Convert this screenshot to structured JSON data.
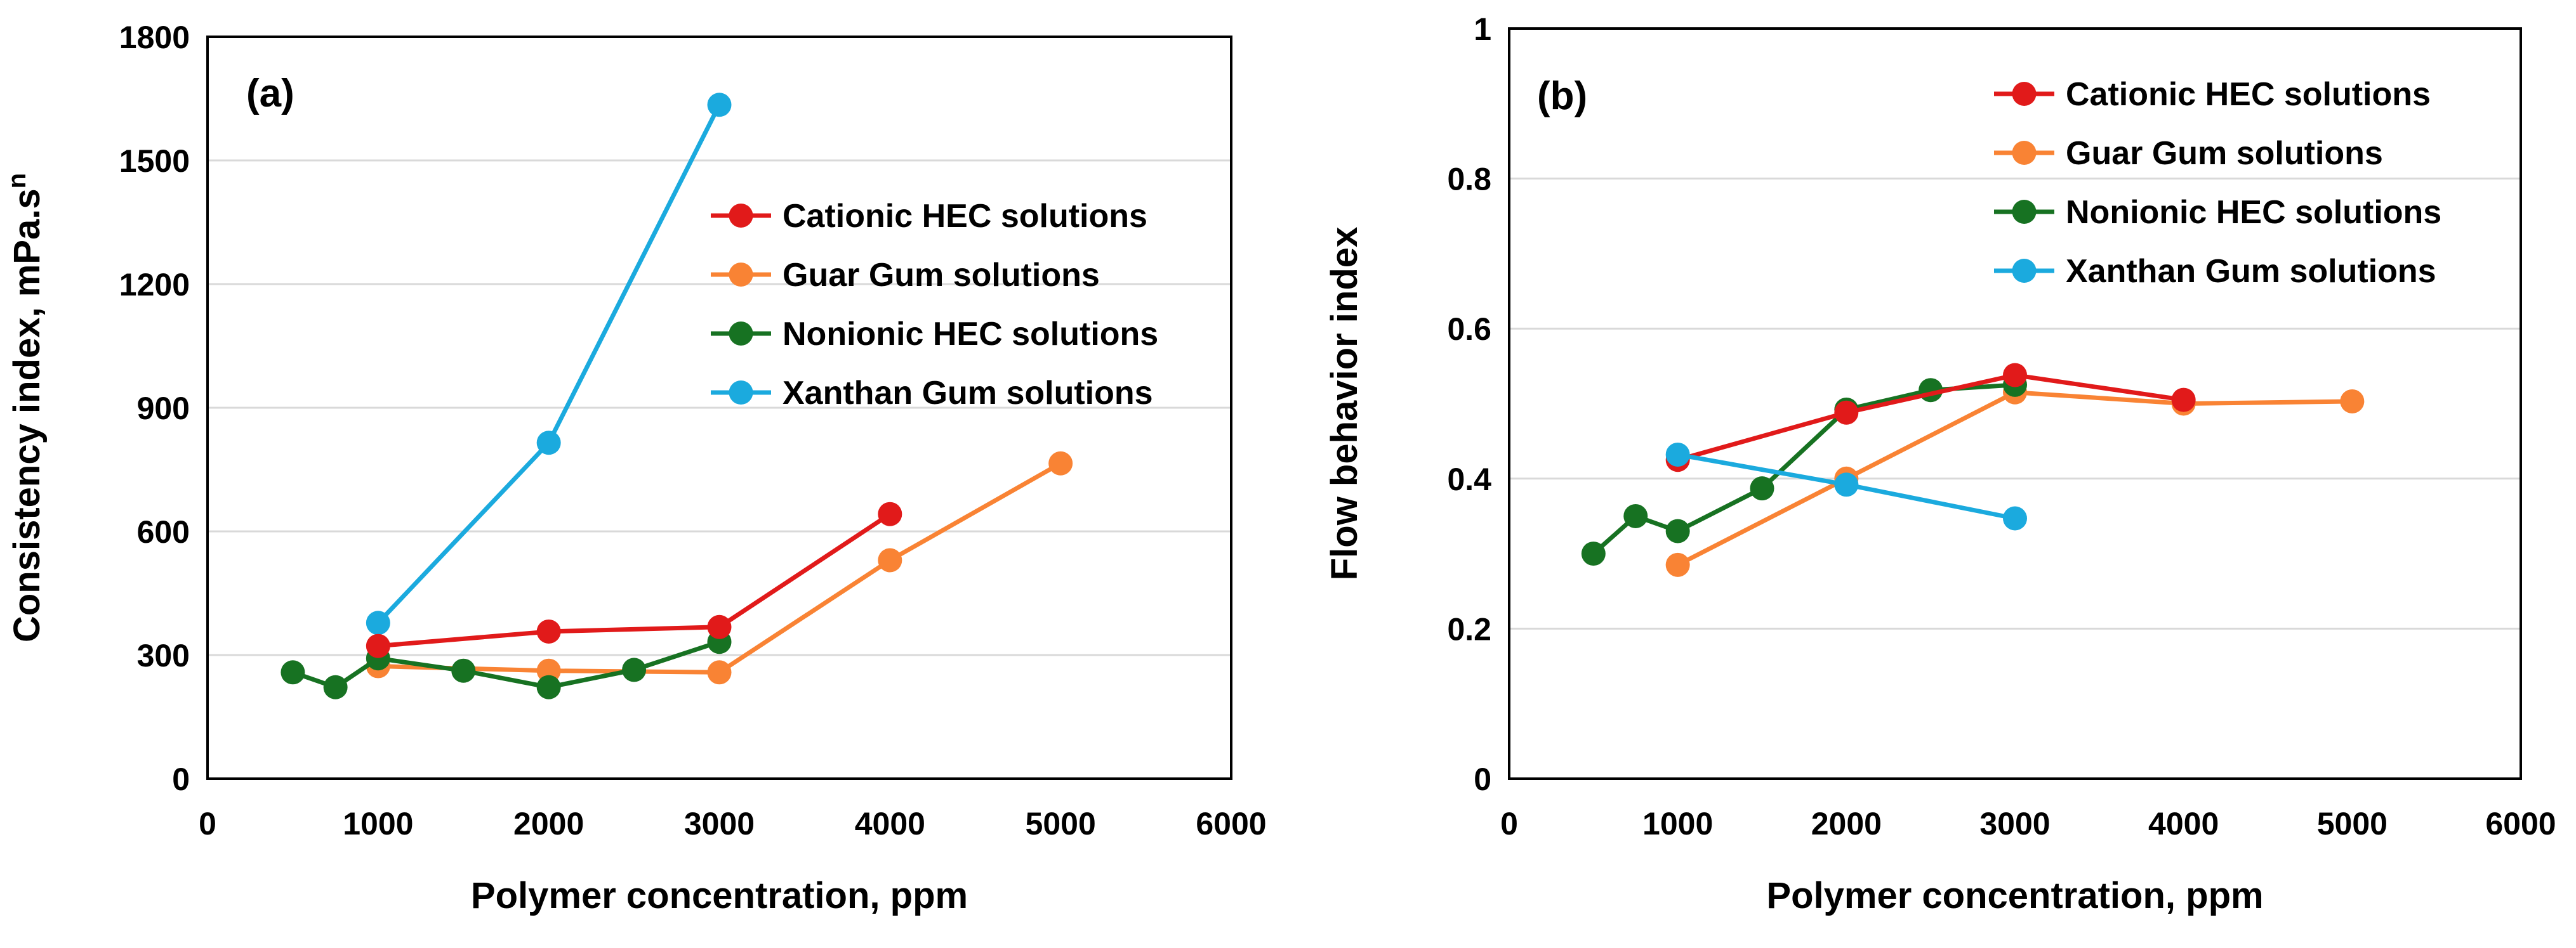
{
  "chart_data": [
    {
      "type": "line",
      "panel_label": "(a)",
      "xlabel": "Polymer concentration, ppm",
      "ylabel": "Consistency index, mPa.s",
      "ylabel_sup": "n",
      "xlim": [
        0,
        6000
      ],
      "ylim": [
        0,
        1800
      ],
      "xticks": [
        0,
        1000,
        2000,
        3000,
        4000,
        5000,
        6000
      ],
      "yticks": [
        0,
        300,
        600,
        900,
        1200,
        1500,
        1800
      ],
      "xtick_labels": [
        "0",
        "1000",
        "2000",
        "3000",
        "4000",
        "5000",
        "6000"
      ],
      "ytick_labels": [
        "0",
        "300",
        "600",
        "900",
        "1200",
        "1500",
        "1800"
      ],
      "grid": true,
      "legend_position": "center-right",
      "series": [
        {
          "name": "Xanthan Gum solutions",
          "color": "#1BAADE",
          "x": [
            1000,
            2000,
            3000
          ],
          "y": [
            378,
            815,
            1635
          ]
        },
        {
          "name": "Guar Gum solutions",
          "color": "#F98334",
          "x": [
            1000,
            2000,
            3000,
            4000,
            5000
          ],
          "y": [
            273,
            262,
            258,
            530,
            765
          ]
        },
        {
          "name": "Nonionic HEC solutions",
          "color": "#177222",
          "x": [
            500,
            750,
            1000,
            1500,
            2000,
            2500,
            3000
          ],
          "y": [
            258,
            222,
            292,
            262,
            222,
            264,
            332
          ]
        },
        {
          "name": "Cationic HEC solutions",
          "color": "#E11A1A",
          "x": [
            1000,
            2000,
            3000,
            4000
          ],
          "y": [
            322,
            357,
            368,
            642
          ]
        }
      ],
      "legend_order": [
        "Cationic HEC solutions",
        "Guar Gum solutions",
        "Nonionic HEC solutions",
        "Xanthan Gum solutions"
      ]
    },
    {
      "type": "line",
      "panel_label": "(b)",
      "xlabel": "Polymer concentration, ppm",
      "ylabel": "Flow behavior index",
      "xlim": [
        0,
        6000
      ],
      "ylim": [
        0,
        1
      ],
      "xticks": [
        0,
        1000,
        2000,
        3000,
        4000,
        5000,
        6000
      ],
      "yticks": [
        0,
        0.2,
        0.4,
        0.6,
        0.8,
        1
      ],
      "xtick_labels": [
        "0",
        "1000",
        "2000",
        "3000",
        "4000",
        "5000",
        "6000"
      ],
      "ytick_labels": [
        "0",
        "0.2",
        "0.4",
        "0.6",
        "0.8",
        "1"
      ],
      "grid": true,
      "legend_position": "top-right",
      "series": [
        {
          "name": "Guar Gum solutions",
          "color": "#F98334",
          "x": [
            1000,
            2000,
            3000,
            4000,
            5000
          ],
          "y": [
            0.285,
            0.4,
            0.515,
            0.5,
            0.503
          ]
        },
        {
          "name": "Nonionic HEC solutions",
          "color": "#177222",
          "x": [
            500,
            750,
            1000,
            1500,
            2000,
            2500,
            3000
          ],
          "y": [
            0.3,
            0.35,
            0.33,
            0.387,
            0.492,
            0.518,
            0.525
          ]
        },
        {
          "name": "Cationic HEC solutions",
          "color": "#E11A1A",
          "x": [
            1000,
            2000,
            3000,
            4000
          ],
          "y": [
            0.425,
            0.488,
            0.538,
            0.505
          ]
        },
        {
          "name": "Xanthan Gum solutions",
          "color": "#1BAADE",
          "x": [
            1000,
            2000,
            3000
          ],
          "y": [
            0.432,
            0.392,
            0.347
          ]
        }
      ],
      "legend_order": [
        "Cationic HEC solutions",
        "Guar Gum solutions",
        "Nonionic HEC solutions",
        "Xanthan Gum solutions"
      ]
    }
  ]
}
